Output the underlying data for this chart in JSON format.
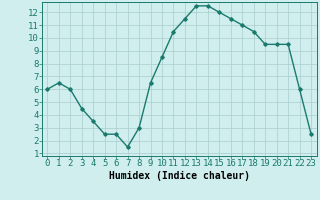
{
  "x": [
    0,
    1,
    2,
    3,
    4,
    5,
    6,
    7,
    8,
    9,
    10,
    11,
    12,
    13,
    14,
    15,
    16,
    17,
    18,
    19,
    20,
    21,
    22,
    23
  ],
  "y": [
    6.0,
    6.5,
    6.0,
    4.5,
    3.5,
    2.5,
    2.5,
    1.5,
    3.0,
    6.5,
    8.5,
    10.5,
    11.5,
    12.5,
    12.5,
    12.0,
    11.5,
    11.0,
    10.5,
    9.5,
    9.5,
    9.5,
    6.0,
    2.5
  ],
  "xlabel": "Humidex (Indice chaleur)",
  "line_color": "#1a7a6e",
  "marker": "D",
  "marker_size": 1.8,
  "line_width": 1.0,
  "bg_color": "#d0eeee",
  "grid_color": "#aacccc",
  "xlim": [
    -0.5,
    23.5
  ],
  "ylim": [
    0.8,
    12.8
  ],
  "xticks": [
    0,
    1,
    2,
    3,
    4,
    5,
    6,
    7,
    8,
    9,
    10,
    11,
    12,
    13,
    14,
    15,
    16,
    17,
    18,
    19,
    20,
    21,
    22,
    23
  ],
  "yticks": [
    1,
    2,
    3,
    4,
    5,
    6,
    7,
    8,
    9,
    10,
    11,
    12
  ],
  "xlabel_fontsize": 7,
  "tick_fontsize": 6.5
}
